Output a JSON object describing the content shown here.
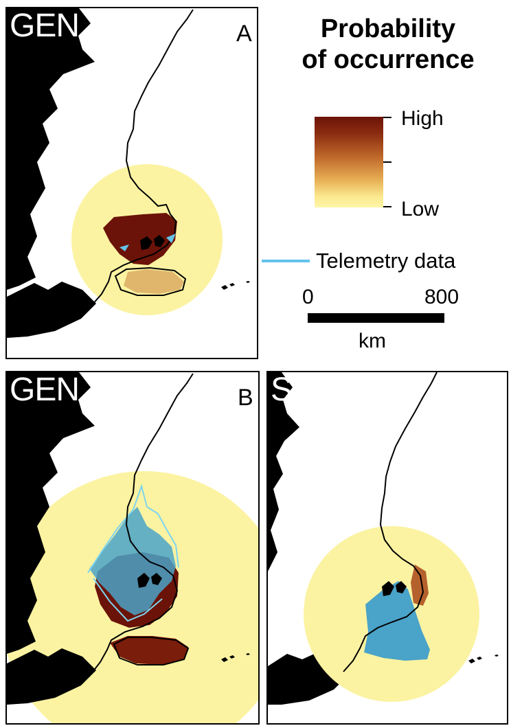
{
  "panels": [
    {
      "tag": "GEN",
      "letter": "A"
    },
    {
      "tag": "GEN",
      "letter": "B"
    },
    {
      "tag": "SSW",
      "letter": ""
    }
  ],
  "legend": {
    "title_line1": "Probability",
    "title_line2": "of occurrence",
    "high_label": "High",
    "low_label": "Low",
    "telemetry_label": "Telemetry data",
    "telemetry_color": "#63c3ea",
    "gradient_colors": [
      "#6b1308",
      "#c06a2b",
      "#fdf6a8"
    ]
  },
  "scale": {
    "min_label": "0",
    "max_label": "800",
    "unit": "km"
  }
}
